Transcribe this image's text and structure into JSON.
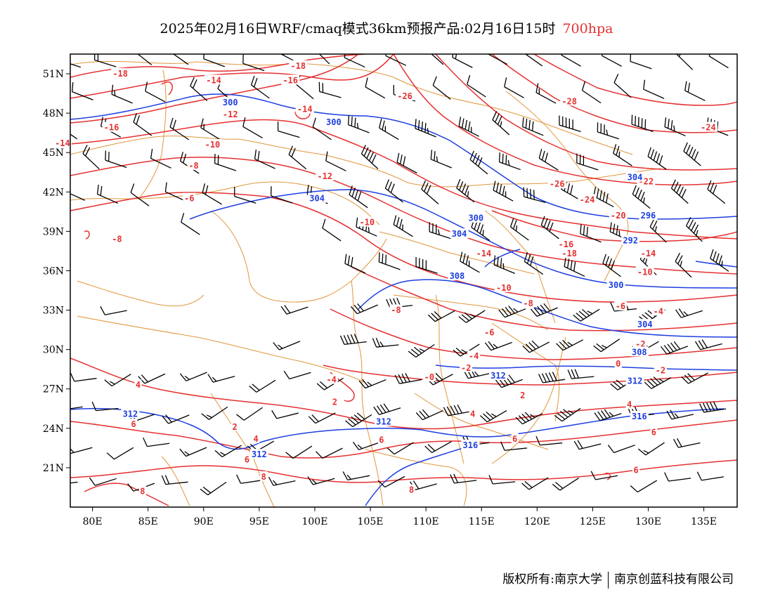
{
  "title": {
    "main": "2025年02月16日WRF/cmaq模式36km预报产品:02月16日15时",
    "level": "700hpa"
  },
  "axes": {
    "lat_labels": [
      "51N",
      "48N",
      "45N",
      "42N",
      "39N",
      "36N",
      "33N",
      "30N",
      "27N",
      "24N",
      "21N"
    ],
    "lat_values": [
      51,
      48,
      45,
      42,
      39,
      36,
      33,
      30,
      27,
      24,
      21
    ],
    "lon_labels": [
      "80E",
      "85E",
      "90E",
      "95E",
      "100E",
      "105E",
      "110E",
      "115E",
      "120E",
      "125E",
      "130E",
      "135E"
    ],
    "lon_values": [
      80,
      85,
      90,
      95,
      100,
      105,
      110,
      115,
      120,
      125,
      130,
      135
    ],
    "lon_range": [
      78,
      138
    ],
    "lat_range": [
      18,
      52.5
    ]
  },
  "colors": {
    "temperature": "#e53030",
    "height": "#1e3fe0",
    "boundary": "#e0963c",
    "wind": "#000000"
  },
  "temp_labels": [
    {
      "t": "-18",
      "lon": 82.5,
      "lat": 51
    },
    {
      "t": "-14",
      "lon": 90.9,
      "lat": 50.5
    },
    {
      "t": "-16",
      "lon": 97.8,
      "lat": 50.5
    },
    {
      "t": "-18",
      "lon": 98.5,
      "lat": 51.6
    },
    {
      "t": "-26",
      "lon": 108.1,
      "lat": 49.3
    },
    {
      "t": "-28",
      "lon": 122.9,
      "lat": 48.9
    },
    {
      "t": "-12",
      "lon": 92.4,
      "lat": 47.9
    },
    {
      "t": "-14",
      "lon": 99.1,
      "lat": 48.3
    },
    {
      "t": "-16",
      "lon": 81.7,
      "lat": 46.9
    },
    {
      "t": "-14",
      "lon": 77.3,
      "lat": 45.7
    },
    {
      "t": "-10",
      "lon": 90.8,
      "lat": 45.6
    },
    {
      "t": "-8",
      "lon": 89.1,
      "lat": 44.0
    },
    {
      "t": "-12",
      "lon": 100.9,
      "lat": 43.2
    },
    {
      "t": "-24",
      "lon": 135.4,
      "lat": 46.9
    },
    {
      "t": "-6",
      "lon": 88.7,
      "lat": 41.5
    },
    {
      "t": "-10",
      "lon": 104.7,
      "lat": 39.7
    },
    {
      "t": "-8",
      "lon": 82.2,
      "lat": 38.4
    },
    {
      "t": "-26",
      "lon": 121.8,
      "lat": 42.6
    },
    {
      "t": "-22",
      "lon": 129.8,
      "lat": 42.8
    },
    {
      "t": "-24",
      "lon": 124.5,
      "lat": 41.4
    },
    {
      "t": "-20",
      "lon": 127.3,
      "lat": 40.2
    },
    {
      "t": "-16",
      "lon": 122.6,
      "lat": 38.0
    },
    {
      "t": "-18",
      "lon": 122.9,
      "lat": 37.3
    },
    {
      "t": "-14",
      "lon": 115.2,
      "lat": 37.3
    },
    {
      "t": "-14",
      "lon": 130.0,
      "lat": 37.3
    },
    {
      "t": "-10",
      "lon": 117.0,
      "lat": 34.7
    },
    {
      "t": "-10",
      "lon": 129.7,
      "lat": 35.9
    },
    {
      "t": "-8",
      "lon": 119.2,
      "lat": 33.5
    },
    {
      "t": "-8",
      "lon": 107.3,
      "lat": 33.0
    },
    {
      "t": "-6",
      "lon": 127.5,
      "lat": 33.3
    },
    {
      "t": "-4",
      "lon": 130.9,
      "lat": 32.9
    },
    {
      "t": "-6",
      "lon": 115.7,
      "lat": 31.3
    },
    {
      "t": "-4",
      "lon": 114.3,
      "lat": 29.5
    },
    {
      "t": "-2",
      "lon": 113.6,
      "lat": 28.6
    },
    {
      "t": "-4",
      "lon": 101.5,
      "lat": 27.7
    },
    {
      "t": "-0",
      "lon": 110.3,
      "lat": 27.9
    },
    {
      "t": "0",
      "lon": 127.3,
      "lat": 28.9
    },
    {
      "t": "-2",
      "lon": 129.3,
      "lat": 30.4
    },
    {
      "t": "-2",
      "lon": 131.1,
      "lat": 28.4
    },
    {
      "t": "2",
      "lon": 118.7,
      "lat": 26.5
    },
    {
      "t": "2",
      "lon": 101.8,
      "lat": 26.0
    },
    {
      "t": "4",
      "lon": 84.1,
      "lat": 27.3
    },
    {
      "t": "4",
      "lon": 114.2,
      "lat": 25.1
    },
    {
      "t": "4",
      "lon": 128.3,
      "lat": 25.8
    },
    {
      "t": "2",
      "lon": 92.8,
      "lat": 24.1
    },
    {
      "t": "6",
      "lon": 83.7,
      "lat": 24.3
    },
    {
      "t": "4",
      "lon": 94.7,
      "lat": 23.2
    },
    {
      "t": "6",
      "lon": 106.0,
      "lat": 23.1
    },
    {
      "t": "6",
      "lon": 118.0,
      "lat": 23.2
    },
    {
      "t": "6",
      "lon": 130.5,
      "lat": 23.7
    },
    {
      "t": "6",
      "lon": 93.9,
      "lat": 21.6
    },
    {
      "t": "8",
      "lon": 95.4,
      "lat": 20.3
    },
    {
      "t": "8",
      "lon": 84.5,
      "lat": 19.2
    },
    {
      "t": "6",
      "lon": 128.9,
      "lat": 20.8
    },
    {
      "t": "8",
      "lon": 108.7,
      "lat": 19.3
    }
  ],
  "height_labels": [
    {
      "t": "300",
      "lon": 92.4,
      "lat": 48.8
    },
    {
      "t": "300",
      "lon": 101.7,
      "lat": 47.3
    },
    {
      "t": "304",
      "lon": 100.2,
      "lat": 41.5
    },
    {
      "t": "300",
      "lon": 114.5,
      "lat": 40.0
    },
    {
      "t": "304",
      "lon": 113.0,
      "lat": 38.8
    },
    {
      "t": "304",
      "lon": 128.8,
      "lat": 43.1
    },
    {
      "t": "296",
      "lon": 130.0,
      "lat": 40.2
    },
    {
      "t": "292",
      "lon": 128.4,
      "lat": 38.3
    },
    {
      "t": "300",
      "lon": 127.1,
      "lat": 34.9
    },
    {
      "t": "308",
      "lon": 112.8,
      "lat": 35.6
    },
    {
      "t": "304",
      "lon": 129.7,
      "lat": 31.9
    },
    {
      "t": "308",
      "lon": 129.2,
      "lat": 29.8
    },
    {
      "t": "312",
      "lon": 116.5,
      "lat": 28.0
    },
    {
      "t": "312",
      "lon": 128.8,
      "lat": 27.6
    },
    {
      "t": "312",
      "lon": 83.4,
      "lat": 25.1
    },
    {
      "t": "312",
      "lon": 106.2,
      "lat": 24.5
    },
    {
      "t": "316",
      "lon": 114.0,
      "lat": 22.7
    },
    {
      "t": "316",
      "lon": 129.2,
      "lat": 24.9
    },
    {
      "t": "312",
      "lon": 95.0,
      "lat": 22.0
    }
  ],
  "footer": {
    "left": "版权所有:南京大学",
    "right": "南京创蓝科技有限公司"
  }
}
